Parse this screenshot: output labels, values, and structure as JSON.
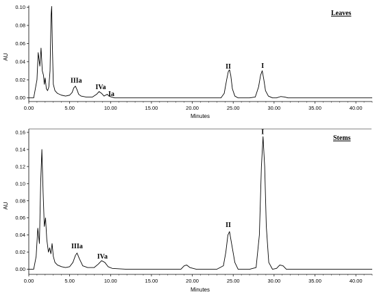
{
  "chart_data": [
    {
      "type": "line",
      "title": "Leaves",
      "xlabel": "Minutes",
      "ylabel": "AU",
      "xlim": [
        0,
        42
      ],
      "ylim": [
        -0.004,
        0.102
      ],
      "xticks": [
        "0.00",
        "5.00",
        "10.00",
        "15.00",
        "20.00",
        "25.00",
        "30.00",
        "35.00",
        "40.00"
      ],
      "yticks": [
        "0.00",
        "0.02",
        "0.04",
        "0.06",
        "0.08",
        "0.10"
      ],
      "grid": false,
      "series": [
        {
          "x": [
            0.0,
            0.6,
            1.0,
            1.15,
            1.35,
            1.5,
            1.65,
            1.8,
            1.9,
            2.0,
            2.15,
            2.3,
            2.45,
            2.6,
            2.72,
            2.8,
            2.88,
            3.0,
            3.2,
            3.5,
            4.0,
            4.5,
            5.0,
            5.3,
            5.5,
            5.7,
            5.9,
            6.1,
            6.4,
            7.0,
            7.8,
            8.3,
            8.6,
            8.9,
            9.2,
            9.4,
            9.6,
            9.8,
            10.1,
            10.5,
            12.0,
            16.0,
            19.0,
            20.0,
            22.0,
            23.5,
            23.9,
            24.2,
            24.4,
            24.55,
            24.7,
            24.9,
            25.2,
            25.6,
            27.0,
            27.7,
            28.1,
            28.35,
            28.55,
            28.75,
            28.95,
            29.3,
            29.8,
            30.3,
            30.8,
            31.3,
            31.7,
            33.0,
            36.0,
            42.0
          ],
          "y": [
            0.0,
            0.0,
            0.02,
            0.05,
            0.035,
            0.055,
            0.03,
            0.025,
            0.015,
            0.022,
            0.01,
            0.008,
            0.012,
            0.03,
            0.09,
            0.101,
            0.06,
            0.015,
            0.008,
            0.005,
            0.003,
            0.002,
            0.003,
            0.006,
            0.011,
            0.013,
            0.009,
            0.004,
            0.002,
            0.001,
            0.001,
            0.004,
            0.007,
            0.005,
            0.002,
            0.003,
            0.004,
            0.002,
            0.001,
            0.0,
            0.0,
            0.0,
            0.0,
            0.0,
            0.0,
            0.0,
            0.005,
            0.02,
            0.029,
            0.031,
            0.025,
            0.01,
            0.002,
            0.0,
            0.0,
            0.001,
            0.012,
            0.025,
            0.03,
            0.02,
            0.008,
            0.002,
            0.0,
            0.0,
            0.0015,
            0.001,
            0.0,
            0.0,
            0.0,
            0.0
          ]
        }
      ],
      "annotations": [
        {
          "text": "IIIa",
          "x": 5.8,
          "y": 0.0168
        },
        {
          "text": "IVa",
          "x": 8.8,
          "y": 0.0096
        },
        {
          "text": "Ia",
          "x": 10.1,
          "y": 0.0022
        },
        {
          "text": "II",
          "x": 24.4,
          "y": 0.0325
        },
        {
          "text": "I",
          "x": 28.6,
          "y": 0.033
        }
      ]
    },
    {
      "type": "line",
      "title": "Stems",
      "xlabel": "Minutes",
      "ylabel": "AU",
      "xlim": [
        0,
        42
      ],
      "ylim": [
        -0.006,
        0.164
      ],
      "xticks": [
        "0.00",
        "5.00",
        "10.00",
        "15.00",
        "20.00",
        "25.00",
        "30.00",
        "35.00",
        "40.00"
      ],
      "yticks": [
        "0.00",
        "0.02",
        "0.04",
        "0.06",
        "0.08",
        "0.10",
        "0.12",
        "0.14",
        "0.16"
      ],
      "grid": false,
      "series": [
        {
          "x": [
            0.0,
            0.6,
            0.9,
            1.1,
            1.3,
            1.45,
            1.6,
            1.75,
            1.9,
            2.05,
            2.2,
            2.4,
            2.55,
            2.7,
            2.85,
            3.0,
            3.2,
            3.5,
            4.0,
            4.5,
            5.0,
            5.4,
            5.7,
            5.9,
            6.2,
            6.6,
            7.2,
            8.0,
            8.5,
            8.9,
            9.3,
            9.7,
            10.2,
            12.0,
            17.0,
            18.6,
            19.0,
            19.3,
            19.7,
            20.5,
            23.0,
            23.8,
            24.1,
            24.35,
            24.55,
            24.8,
            25.2,
            25.6,
            27.0,
            27.8,
            28.2,
            28.45,
            28.65,
            28.85,
            29.05,
            29.35,
            29.8,
            30.3,
            30.7,
            31.1,
            31.5,
            33.0,
            36.0,
            42.0
          ],
          "y": [
            0.0,
            0.0,
            0.015,
            0.048,
            0.03,
            0.1,
            0.14,
            0.09,
            0.05,
            0.06,
            0.035,
            0.02,
            0.025,
            0.018,
            0.03,
            0.015,
            0.008,
            0.005,
            0.003,
            0.002,
            0.003,
            0.008,
            0.016,
            0.019,
            0.012,
            0.004,
            0.002,
            0.002,
            0.006,
            0.01,
            0.008,
            0.003,
            0.001,
            0.0,
            0.0,
            0.0,
            0.004,
            0.005,
            0.002,
            0.0,
            0.0,
            0.004,
            0.02,
            0.04,
            0.044,
            0.03,
            0.008,
            0.0,
            0.0,
            0.002,
            0.04,
            0.12,
            0.155,
            0.12,
            0.05,
            0.008,
            0.0,
            0.001,
            0.005,
            0.004,
            0.0,
            0.0,
            0.0,
            0.0
          ]
        }
      ],
      "annotations": [
        {
          "text": "IIIa",
          "x": 5.9,
          "y": 0.0245
        },
        {
          "text": "IVa",
          "x": 9.0,
          "y": 0.0125
        },
        {
          "text": "II",
          "x": 24.4,
          "y": 0.0495
        },
        {
          "text": "I",
          "x": 28.6,
          "y": 0.158
        }
      ]
    }
  ]
}
